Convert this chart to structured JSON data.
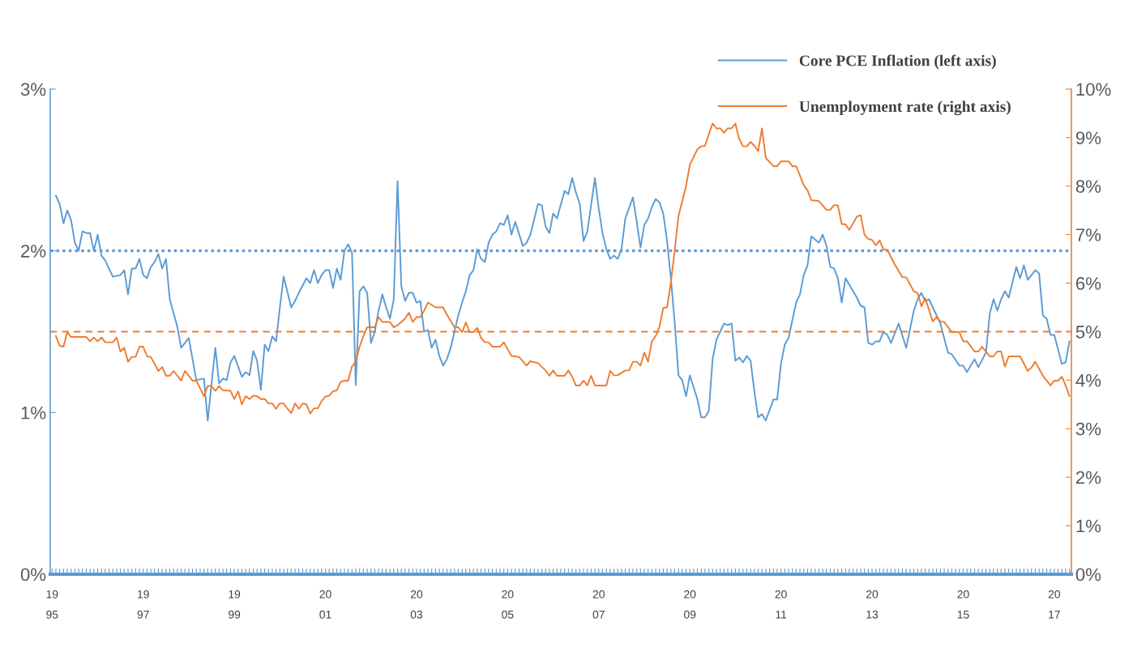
{
  "chart_data": {
    "type": "line",
    "categories": [
      "19\n95",
      null,
      null,
      null,
      null,
      null,
      null,
      null,
      null,
      null,
      null,
      null,
      null,
      null,
      null,
      null,
      null,
      null,
      null,
      null,
      null,
      null,
      null,
      null,
      "19\n97",
      null,
      null,
      null,
      null,
      null,
      null,
      null,
      null,
      null,
      null,
      null,
      null,
      null,
      null,
      null,
      null,
      null,
      null,
      null,
      null,
      null,
      null,
      null,
      "19\n99",
      null,
      null,
      null,
      null,
      null,
      null,
      null,
      null,
      null,
      null,
      null,
      null,
      null,
      null,
      null,
      null,
      null,
      null,
      null,
      null,
      null,
      null,
      null,
      "20\n01",
      null,
      null,
      null,
      null,
      null,
      null,
      null,
      null,
      null,
      null,
      null,
      null,
      null,
      null,
      null,
      null,
      null,
      null,
      null,
      null,
      null,
      null,
      null,
      "20\n03",
      null,
      null,
      null,
      null,
      null,
      null,
      null,
      null,
      null,
      null,
      null,
      null,
      null,
      null,
      null,
      null,
      null,
      null,
      null,
      null,
      null,
      null,
      null,
      "20\n05",
      null,
      null,
      null,
      null,
      null,
      null,
      null,
      null,
      null,
      null,
      null,
      null,
      null,
      null,
      null,
      null,
      null,
      null,
      null,
      null,
      null,
      null,
      null,
      "20\n07",
      null,
      null,
      null,
      null,
      null,
      null,
      null,
      null,
      null,
      null,
      null,
      null,
      null,
      null,
      null,
      null,
      null,
      null,
      null,
      null,
      null,
      null,
      null,
      "20\n09",
      null,
      null,
      null,
      null,
      null,
      null,
      null,
      null,
      null,
      null,
      null,
      null,
      null,
      null,
      null,
      null,
      null,
      null,
      null,
      null,
      null,
      null,
      null,
      "20\n11",
      null,
      null,
      null,
      null,
      null,
      null,
      null,
      null,
      null,
      null,
      null,
      null,
      null,
      null,
      null,
      null,
      null,
      null,
      null,
      null,
      null,
      null,
      null,
      "20\n13",
      null,
      null,
      null,
      null,
      null,
      null,
      null,
      null,
      null,
      null,
      null,
      null,
      null,
      null,
      null,
      null,
      null,
      null,
      null,
      null,
      null,
      null,
      null,
      "20\n15",
      null,
      null,
      null,
      null,
      null,
      null,
      null,
      null,
      null,
      null,
      null,
      null,
      null,
      null,
      null,
      null,
      null,
      null,
      null,
      null,
      null,
      null,
      null,
      "20\n17",
      null,
      null,
      null,
      null
    ],
    "ylim": [
      0,
      3
    ],
    "yticks": [
      {
        "value": 0,
        "label": "0%"
      },
      {
        "value": 1,
        "label": "1%"
      },
      {
        "value": 2,
        "label": "2%"
      },
      {
        "value": 3,
        "label": "3%"
      }
    ],
    "y2lim": [
      0,
      10
    ],
    "y2ticks": [
      {
        "value": 0,
        "label": "0%"
      },
      {
        "value": 1,
        "label": "1%"
      },
      {
        "value": 2,
        "label": "2%"
      },
      {
        "value": 3,
        "label": "3%"
      },
      {
        "value": 4,
        "label": "4%"
      },
      {
        "value": 5,
        "label": "5%"
      },
      {
        "value": 6,
        "label": "6%"
      },
      {
        "value": 7,
        "label": "7%"
      },
      {
        "value": 8,
        "label": "8%"
      },
      {
        "value": 9,
        "label": "9%"
      },
      {
        "value": 10,
        "label": "10%"
      }
    ],
    "legend": "top right",
    "line_style": "solid",
    "ref_lines": [
      {
        "axis": "y",
        "value": 2,
        "color": "#5b9bd5",
        "line_style": "dotted"
      },
      {
        "axis": "y2",
        "value": 5,
        "color": "#ed7d31",
        "line_style": "dashed"
      }
    ],
    "series": [
      {
        "name": "Core PCE Inflation (left axis)",
        "color": "#5b9bd5",
        "axis": "y",
        "values": [
          null,
          2.34,
          2.29,
          2.17,
          2.25,
          2.19,
          2.05,
          2.0,
          2.12,
          2.11,
          2.11,
          2.0,
          2.1,
          1.97,
          1.94,
          null,
          1.84,
          null,
          1.85,
          1.88,
          1.73,
          1.89,
          1.89,
          1.95,
          1.85,
          1.83,
          1.9,
          1.93,
          1.98,
          1.89,
          1.95,
          1.7,
          null,
          1.53,
          1.4,
          null,
          1.46,
          null,
          1.2,
          null,
          1.21,
          0.95,
          null,
          1.4,
          1.18,
          1.21,
          1.2,
          1.31,
          1.35,
          null,
          1.22,
          1.25,
          1.23,
          1.38,
          1.32,
          1.14,
          1.42,
          1.38,
          1.47,
          1.44,
          1.65,
          1.84,
          null,
          1.65,
          1.69,
          1.74,
          null,
          1.83,
          1.8,
          1.88,
          1.8,
          1.85,
          1.88,
          1.88,
          1.77,
          1.89,
          1.82,
          2.0,
          2.04,
          1.99,
          1.17,
          1.75,
          1.78,
          1.74,
          1.43,
          1.5,
          1.63,
          1.73,
          1.65,
          1.58,
          1.7,
          2.43,
          1.78,
          1.69,
          1.74,
          1.74,
          1.68,
          1.69,
          1.5,
          1.51,
          1.4,
          1.45,
          1.35,
          1.29,
          1.33,
          1.4,
          null,
          1.6,
          1.68,
          1.75,
          1.85,
          1.88,
          2.01,
          1.95,
          1.93,
          2.05,
          2.1,
          2.12,
          2.17,
          2.16,
          2.22,
          2.1,
          2.18,
          null,
          2.03,
          2.05,
          2.1,
          null,
          2.29,
          2.28,
          2.15,
          2.11,
          2.23,
          2.2,
          null,
          2.37,
          2.35,
          2.45,
          2.36,
          2.29,
          2.06,
          2.12,
          null,
          2.45,
          2.26,
          2.11,
          2.01,
          1.95,
          1.97,
          1.95,
          2.01,
          2.2,
          null,
          2.33,
          2.18,
          2.02,
          2.16,
          2.2,
          2.27,
          2.32,
          2.3,
          2.23,
          2.06,
          1.83,
          1.56,
          1.23,
          1.2,
          1.1,
          1.23,
          null,
          1.08,
          0.97,
          0.97,
          1.01,
          1.33,
          1.45,
          null,
          1.55,
          1.54,
          1.55,
          1.32,
          1.34,
          1.31,
          1.35,
          1.32,
          1.13,
          0.97,
          0.99,
          0.95,
          null,
          1.08,
          1.08,
          1.3,
          1.42,
          1.46,
          null,
          1.68,
          1.73,
          1.85,
          1.91,
          2.09,
          null,
          2.05,
          2.1,
          2.03,
          1.9,
          1.89,
          1.83,
          1.68,
          1.83,
          null,
          null,
          1.71,
          1.66,
          1.65,
          1.43,
          1.42,
          1.44,
          1.44,
          1.5,
          1.48,
          1.43,
          null,
          1.55,
          null,
          1.4,
          null,
          1.63,
          1.7,
          1.74,
          1.69,
          1.7,
          1.65,
          null,
          1.55,
          null,
          1.37,
          1.36,
          null,
          1.29,
          1.29,
          1.25,
          null,
          1.33,
          1.28,
          null,
          1.37,
          1.61,
          1.7,
          1.63,
          1.7,
          1.75,
          1.71,
          null,
          1.9,
          1.83,
          1.91,
          1.82,
          null,
          1.88,
          1.86,
          1.6,
          1.58,
          1.48,
          1.48,
          null,
          1.3,
          1.31,
          1.44
        ]
      },
      {
        "name": "Unemployment rate (right axis)",
        "color": "#ed7d31",
        "axis": "y2",
        "values": [
          null,
          4.91,
          4.71,
          4.69,
          4.99,
          4.89,
          null,
          null,
          null,
          4.89,
          4.8,
          4.88,
          4.8,
          4.88,
          4.78,
          null,
          4.78,
          4.88,
          4.59,
          4.67,
          4.38,
          4.48,
          4.48,
          4.69,
          4.69,
          4.49,
          4.48,
          null,
          4.19,
          4.27,
          4.09,
          4.09,
          4.19,
          null,
          3.99,
          4.19,
          null,
          3.99,
          3.99,
          null,
          3.67,
          3.88,
          3.88,
          3.78,
          3.88,
          3.79,
          null,
          3.78,
          3.61,
          3.77,
          3.5,
          3.67,
          3.61,
          3.68,
          3.67,
          3.61,
          3.61,
          3.52,
          3.52,
          3.41,
          3.52,
          3.52,
          3.41,
          3.32,
          3.52,
          3.41,
          3.52,
          3.5,
          3.31,
          3.42,
          3.42,
          3.57,
          3.66,
          3.68,
          3.77,
          3.79,
          3.96,
          3.99,
          3.99,
          4.28,
          4.38,
          4.69,
          4.91,
          5.09,
          null,
          5.09,
          5.3,
          5.2,
          null,
          5.2,
          5.09,
          5.13,
          null,
          5.27,
          5.39,
          5.2,
          5.3,
          5.3,
          5.43,
          5.6,
          null,
          5.5,
          null,
          5.5,
          5.35,
          null,
          5.09,
          5.09,
          4.99,
          5.19,
          4.99,
          4.99,
          5.08,
          4.87,
          4.78,
          4.78,
          4.69,
          null,
          4.69,
          4.78,
          null,
          4.5,
          null,
          4.48,
          null,
          4.3,
          4.39,
          null,
          4.35,
          null,
          4.2,
          4.09,
          4.2,
          4.09,
          null,
          4.09,
          4.2,
          4.07,
          3.89,
          3.89,
          3.99,
          3.89,
          4.09,
          3.89,
          null,
          null,
          3.89,
          4.19,
          4.1,
          4.1,
          null,
          4.2,
          4.2,
          4.38,
          4.38,
          4.3,
          4.57,
          4.38,
          4.8,
          4.91,
          5.1,
          5.49,
          5.5,
          6.02,
          6.66,
          7.38,
          null,
          8.0,
          8.44,
          null,
          8.76,
          8.82,
          8.83,
          9.07,
          9.29,
          9.19,
          9.19,
          9.1,
          9.19,
          9.19,
          9.29,
          8.97,
          8.82,
          8.82,
          8.91,
          8.83,
          8.72,
          9.19,
          8.58,
          null,
          8.41,
          8.41,
          8.51,
          null,
          8.51,
          8.41,
          8.41,
          null,
          8.02,
          7.91,
          7.71,
          null,
          7.69,
          null,
          7.51,
          7.51,
          7.61,
          7.6,
          7.22,
          7.21,
          7.1,
          null,
          7.37,
          7.4,
          7.0,
          6.91,
          6.89,
          6.78,
          6.88,
          6.69,
          6.69,
          null,
          6.38,
          null,
          6.12,
          6.12,
          null,
          5.83,
          5.8,
          5.52,
          5.69,
          null,
          5.21,
          5.3,
          5.21,
          5.2,
          null,
          4.99,
          null,
          4.99,
          4.8,
          4.8,
          null,
          4.59,
          4.59,
          4.69,
          null,
          4.49,
          4.49,
          4.59,
          4.59,
          4.28,
          4.49,
          null,
          null,
          4.49,
          null,
          4.19,
          4.26,
          4.38,
          null,
          4.09,
          null,
          3.89,
          3.99,
          3.99,
          4.07,
          3.89,
          3.67
        ]
      }
    ]
  }
}
